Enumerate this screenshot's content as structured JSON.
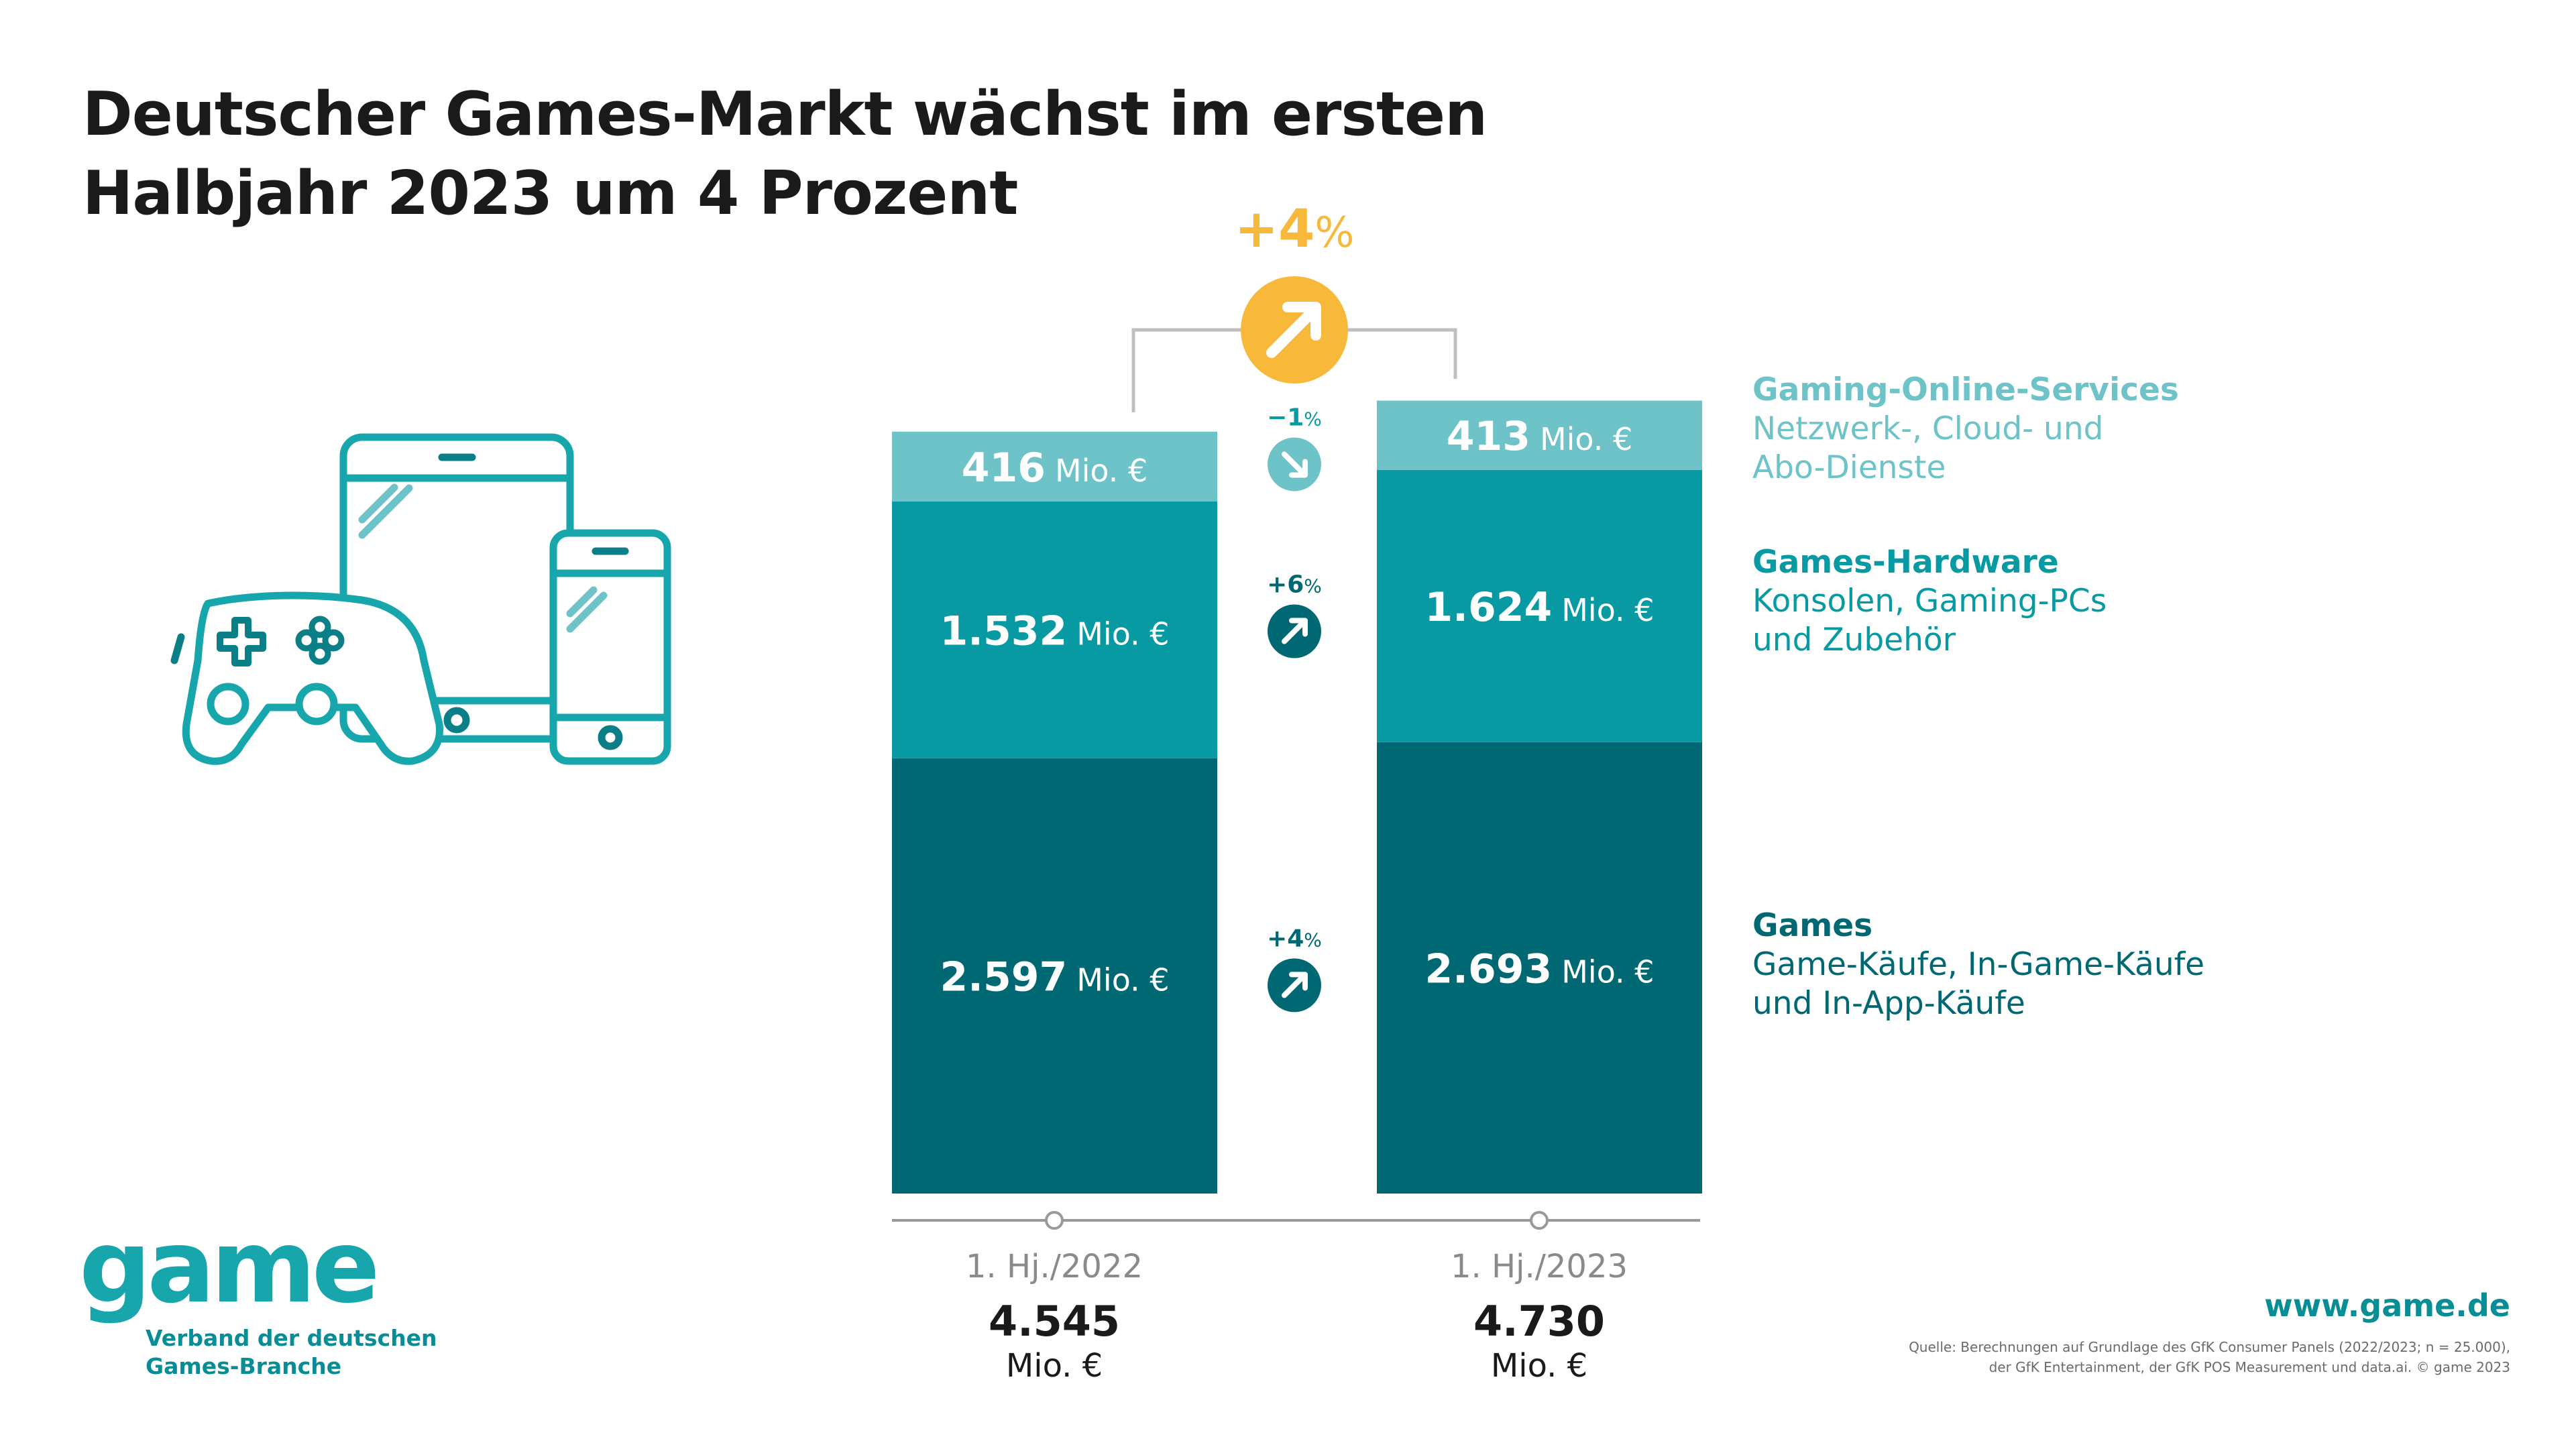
{
  "title": {
    "line1": "Deutscher Games-Markt wächst im ersten",
    "line2": "Halbjahr 2023 um 4 Prozent"
  },
  "colors": {
    "games": "#006872",
    "hardware": "#079aa3",
    "online": "#6dc3c8",
    "growth_badge": "#f8b93a",
    "text_dark": "#1a1a1a",
    "brand": "#16a6ac"
  },
  "chart_data": {
    "type": "bar",
    "stacked": true,
    "unit": "Mio. €",
    "categories": [
      "1. Hj./2022",
      "1. Hj./2023"
    ],
    "series": [
      {
        "name": "Games",
        "value_labels": [
          "2.597",
          "2.693"
        ],
        "values": [
          2597,
          2693
        ],
        "change": "+4%",
        "change_label": "+4",
        "direction": "up"
      },
      {
        "name": "Games-Hardware",
        "value_labels": [
          "1.532",
          "1.624"
        ],
        "values": [
          1532,
          1624
        ],
        "change": "+6%",
        "change_label": "+6",
        "direction": "up"
      },
      {
        "name": "Gaming-Online-Services",
        "value_labels": [
          "416",
          "413"
        ],
        "values": [
          416,
          413
        ],
        "change": "−1%",
        "change_label": "−1",
        "direction": "down"
      }
    ],
    "totals": {
      "labels": [
        "4.545",
        "4.730"
      ],
      "values": [
        4545,
        4730
      ],
      "unit": "Mio. €"
    },
    "overall_change": {
      "label": "+4",
      "percent_sign": "%",
      "direction": "up"
    },
    "percent_sign": "%"
  },
  "legend": [
    {
      "title": "Gaming-Online-Services",
      "lines": [
        "Netzwerk-, Cloud- und",
        "Abo-Dienste"
      ]
    },
    {
      "title": "Games-Hardware",
      "lines": [
        "Konsolen, Gaming-PCs",
        "und Zubehör"
      ]
    },
    {
      "title": "Games",
      "lines": [
        "Game-Käufe, In-Game-Käufe",
        "und In-App-Käufe"
      ]
    }
  ],
  "illustration": {
    "icons": [
      "gamepad-icon",
      "tablet-icon",
      "smartphone-icon"
    ]
  },
  "logo": {
    "word": "game",
    "sub_line1": "Verband der deutschen",
    "sub_line2": "Games-Branche"
  },
  "footer": {
    "website": "www.game.de",
    "source_line1": "Quelle: Berechnungen auf Grundlage des GfK Consumer Panels (2022/2023; n = 25.000),",
    "source_line2": "der GfK Entertainment, der GfK POS Measurement und data.ai. © game 2023"
  }
}
